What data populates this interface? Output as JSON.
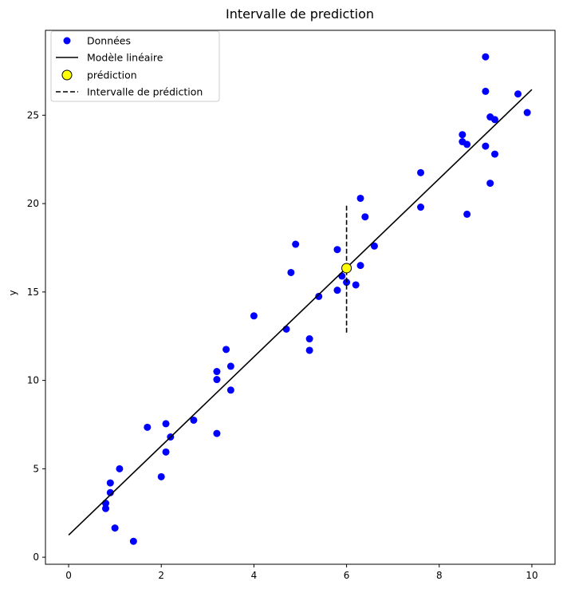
{
  "chart_data": {
    "type": "scatter",
    "title": "Intervalle de prediction",
    "xlabel": "",
    "ylabel": "y",
    "xlim": [
      -0.5,
      10.5
    ],
    "ylim": [
      -0.4,
      29.8
    ],
    "xticks": [
      0,
      2,
      4,
      6,
      8,
      10
    ],
    "yticks": [
      0,
      5,
      10,
      15,
      20,
      25
    ],
    "grid": false,
    "legend_position": "top-left",
    "colors": {
      "points": "#0000ff",
      "line": "#000000",
      "prediction_fill": "#ffff00",
      "prediction_edge": "#000000",
      "interval": "#000000"
    },
    "series": [
      {
        "name": "Données",
        "kind": "scatter",
        "x": [
          0.8,
          0.8,
          0.9,
          0.9,
          1.0,
          1.1,
          1.4,
          1.7,
          2.0,
          2.1,
          2.1,
          2.2,
          2.7,
          3.2,
          3.2,
          3.2,
          3.4,
          3.5,
          3.5,
          4.0,
          4.7,
          4.8,
          4.9,
          5.2,
          5.2,
          5.4,
          5.8,
          5.8,
          5.9,
          6.0,
          6.2,
          6.3,
          6.3,
          6.4,
          6.6,
          7.6,
          7.6,
          8.5,
          8.5,
          8.6,
          8.6,
          9.0,
          9.0,
          9.0,
          9.1,
          9.1,
          9.2,
          9.2,
          9.7,
          9.9
        ],
        "y": [
          3.05,
          2.75,
          3.65,
          4.2,
          1.65,
          5.0,
          0.9,
          7.35,
          4.55,
          5.95,
          7.55,
          6.8,
          7.75,
          7.0,
          10.05,
          10.5,
          11.75,
          9.45,
          10.8,
          13.65,
          12.9,
          16.1,
          17.7,
          12.35,
          11.7,
          14.75,
          17.4,
          15.1,
          15.9,
          15.55,
          15.4,
          16.5,
          20.3,
          19.25,
          17.6,
          21.75,
          19.8,
          23.9,
          23.5,
          23.35,
          19.4,
          28.3,
          26.35,
          23.25,
          24.9,
          21.15,
          24.75,
          22.8,
          26.2,
          25.15
        ]
      },
      {
        "name": "Modèle linéaire",
        "kind": "line",
        "x": [
          0,
          10
        ],
        "y": [
          1.25,
          26.45
        ]
      },
      {
        "name": "prédiction",
        "kind": "point",
        "x": [
          6
        ],
        "y": [
          16.35
        ]
      },
      {
        "name": "Intervalle de prédiction",
        "kind": "dashed-line",
        "x": [
          6,
          6
        ],
        "y": [
          12.7,
          20.0
        ]
      }
    ]
  }
}
